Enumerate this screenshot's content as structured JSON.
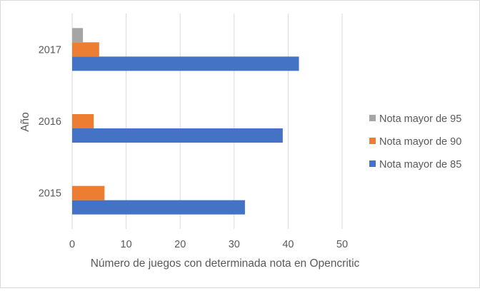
{
  "chart_data": {
    "type": "bar",
    "orientation": "horizontal",
    "categories": [
      "2015",
      "2016",
      "2017"
    ],
    "series": [
      {
        "name": "Nota mayor de 85",
        "color": "#4472c4",
        "values": [
          32,
          39,
          42
        ]
      },
      {
        "name": "Nota mayor de 90",
        "color": "#ed7d31",
        "values": [
          6,
          4,
          5
        ]
      },
      {
        "name": "Nota mayor de 95",
        "color": "#a5a5a5",
        "values": [
          0,
          0,
          2
        ]
      }
    ],
    "xlabel": "Número de juegos con determinada nota en Opencritic",
    "ylabel": "Año",
    "xlim": [
      0,
      50
    ],
    "xticks": [
      "0",
      "10",
      "20",
      "30",
      "40",
      "50"
    ],
    "grid": "vertical",
    "legend_position": "right",
    "legend_order": [
      2,
      1,
      0
    ]
  }
}
